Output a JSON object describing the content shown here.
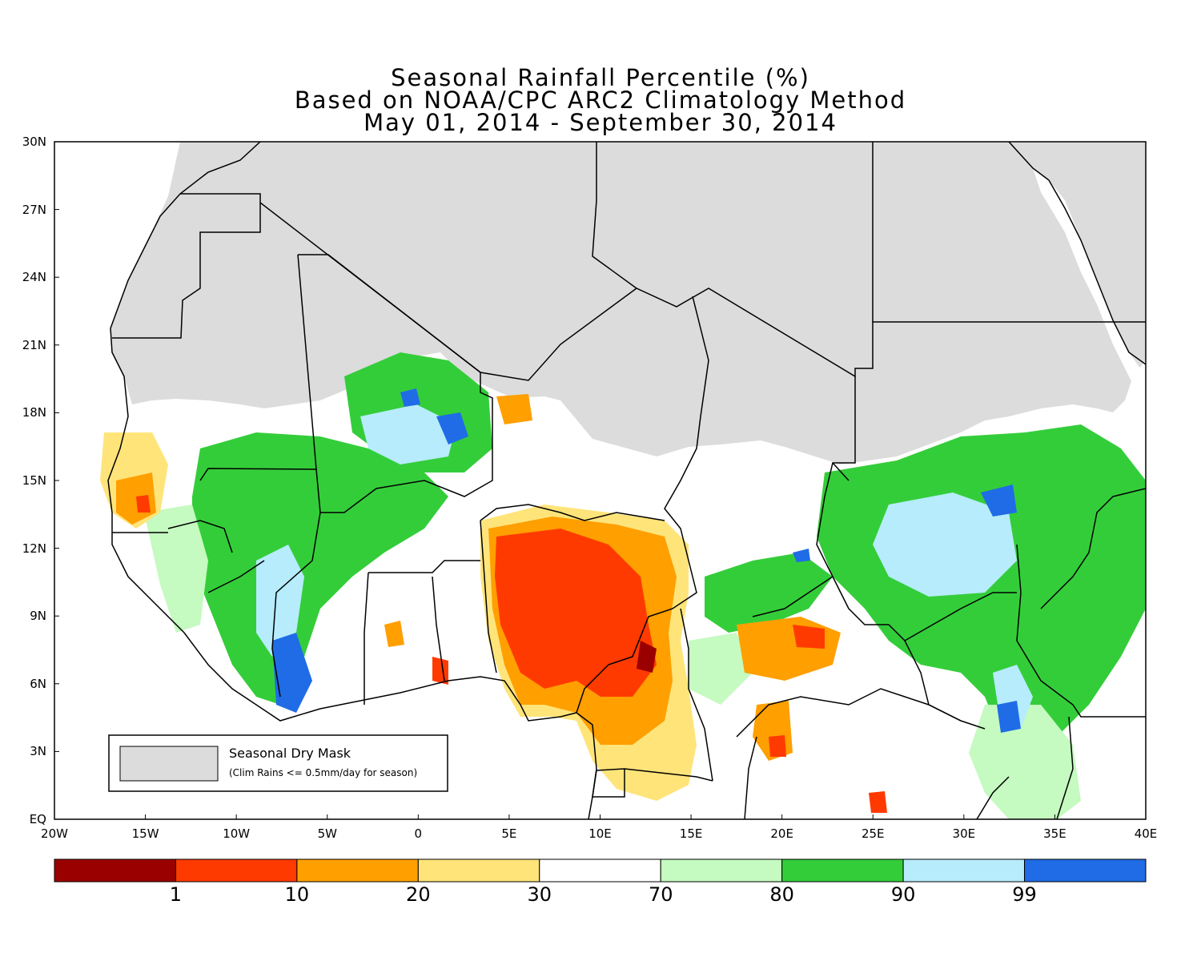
{
  "title": {
    "line1": "Seasonal Rainfall Percentile (%)",
    "line2": "Based on NOAA/CPC ARC2 Climatology Method",
    "line3": "May 01, 2014 - September 30, 2014"
  },
  "map": {
    "lat_range": [
      0,
      30
    ],
    "lon_range": [
      -20,
      40
    ],
    "lat_ticks": [
      "30N",
      "27N",
      "24N",
      "21N",
      "18N",
      "15N",
      "12N",
      "9N",
      "6N",
      "3N",
      "EQ"
    ],
    "lon_ticks": [
      "20W",
      "15W",
      "10W",
      "5W",
      "0",
      "5E",
      "10E",
      "15E",
      "20E",
      "25E",
      "30E",
      "35E",
      "40E"
    ],
    "colors": {
      "dry_mask": "#dcdcdc",
      "ocean": "#ffffff",
      "land_base": "#ffffff"
    }
  },
  "legend": {
    "mask_title": "Seasonal Dry Mask",
    "mask_note": "(Clim Rains <= 0.5mm/day for season)"
  },
  "colorbar": {
    "labels": [
      "1",
      "10",
      "20",
      "30",
      "70",
      "80",
      "90",
      "99"
    ],
    "colors": [
      "#9b0000",
      "#ff3a00",
      "#ff9f00",
      "#ffe47a",
      "#ffffff",
      "#c5fac0",
      "#34cd3a",
      "#b6ecfb",
      "#1f6ce6"
    ]
  }
}
